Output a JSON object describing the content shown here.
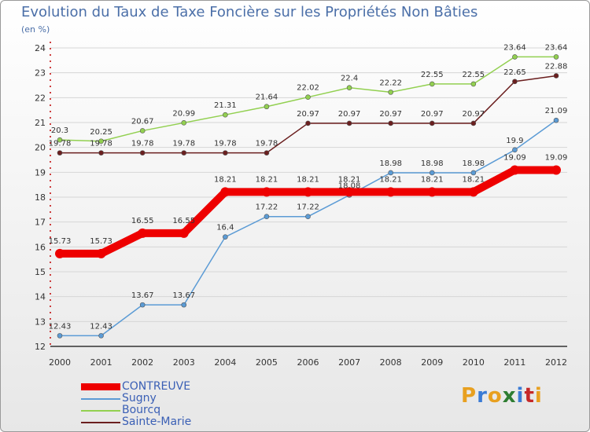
{
  "title": "Evolution du Taux de Taxe Foncière sur les Propriétés Non Bâties",
  "subtitle": "(en %)",
  "logo": {
    "letters": [
      "P",
      "r",
      "o",
      "x",
      "i",
      "t",
      "i"
    ],
    "colors": [
      "#e8a020",
      "#3a7bd5",
      "#e8a020",
      "#2e7d32",
      "#3a7bd5",
      "#c62828",
      "#e8a020"
    ]
  },
  "chart_data": {
    "type": "line",
    "categories": [
      "2000",
      "2001",
      "2002",
      "2003",
      "2004",
      "2005",
      "2006",
      "2007",
      "2008",
      "2009",
      "2010",
      "2011",
      "2012"
    ],
    "ylim": [
      12,
      24
    ],
    "yticks": [
      12,
      13,
      14,
      15,
      16,
      17,
      18,
      19,
      20,
      21,
      22,
      23,
      24
    ],
    "series": [
      {
        "name": "CONTREUVE",
        "color": "#ee0000",
        "thick": true,
        "values": [
          15.73,
          15.73,
          16.55,
          16.55,
          18.21,
          18.21,
          18.21,
          18.21,
          18.21,
          18.21,
          18.21,
          19.09,
          19.09
        ]
      },
      {
        "name": "Sugny",
        "color": "#5b9bd5",
        "thick": false,
        "values": [
          12.43,
          12.43,
          13.67,
          13.67,
          16.4,
          17.22,
          17.22,
          18.08,
          18.98,
          18.98,
          18.98,
          19.9,
          21.09
        ]
      },
      {
        "name": "Bourcq",
        "color": "#92d050",
        "thick": false,
        "values": [
          20.3,
          20.25,
          20.67,
          20.99,
          21.31,
          21.64,
          22.02,
          22.4,
          22.22,
          22.55,
          22.55,
          23.64,
          23.64
        ]
      },
      {
        "name": "Sainte-Marie",
        "color": "#6b1f1f",
        "thick": false,
        "values": [
          19.78,
          19.78,
          19.78,
          19.78,
          19.78,
          19.78,
          20.97,
          20.97,
          20.97,
          20.97,
          20.97,
          22.65,
          22.88
        ]
      }
    ]
  }
}
